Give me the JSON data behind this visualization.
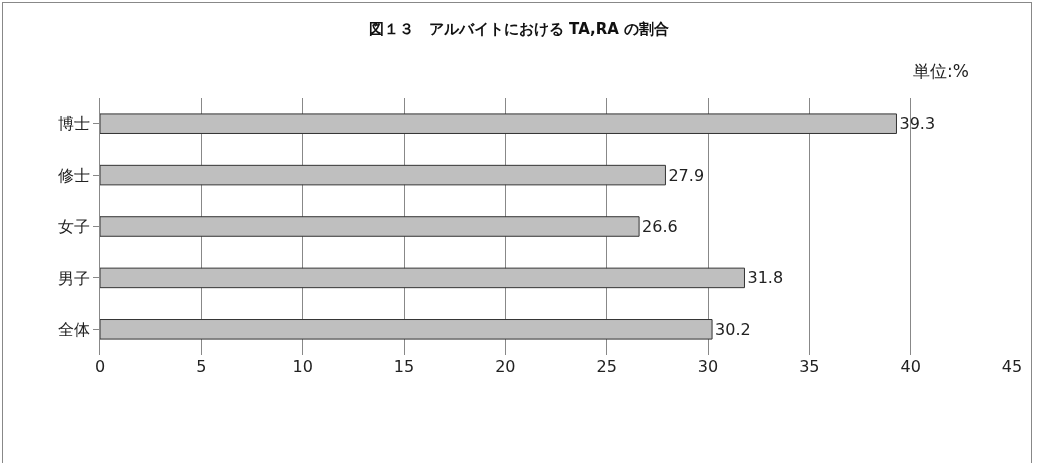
{
  "chart_data": {
    "type": "bar",
    "orientation": "horizontal",
    "title": "図１３　アルバイトにおける TA,RA の割合",
    "annotations": [
      "単位:%"
    ],
    "categories": [
      "博士",
      "修士",
      "女子",
      "男子",
      "全体"
    ],
    "values": [
      39.3,
      27.9,
      26.6,
      31.8,
      30.2
    ],
    "color": "#bfbfbf",
    "xlim": [
      0,
      45
    ],
    "xticks": [
      0,
      5,
      10,
      15,
      20,
      25,
      30,
      35,
      40,
      45
    ],
    "grid": "x",
    "data_labels": true,
    "legend": false
  }
}
